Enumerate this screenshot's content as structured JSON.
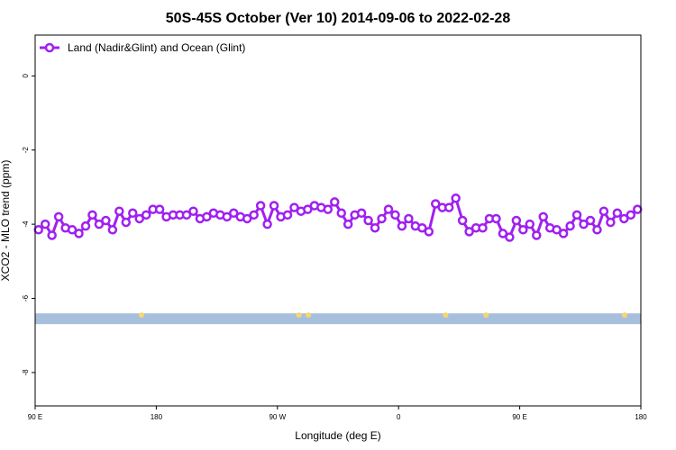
{
  "chart_data": {
    "type": "line",
    "title": "50S-45S October (Ver 10)   2014-09-06 to 2022-02-28",
    "xlabel": "Longitude (deg E)",
    "ylabel": "XCO2 - MLO trend (ppm)",
    "x_ticks": [
      {
        "value": 90,
        "label": "90 E"
      },
      {
        "value": 180,
        "label": "180"
      },
      {
        "value": 270,
        "label": "90 W"
      },
      {
        "value": 360,
        "label": "0"
      },
      {
        "value": 450,
        "label": "90 E"
      },
      {
        "value": 540,
        "label": "180"
      }
    ],
    "y_ticks": [
      0,
      -2,
      -4,
      -6,
      -8
    ],
    "xlim": [
      90,
      540
    ],
    "ylim": [
      -8.9,
      1.1
    ],
    "grid": false,
    "legend_position": "top-left",
    "series": [
      {
        "name": "Land (Nadir&Glint) and Ocean (Glint)",
        "color": "#a020f0",
        "marker": "open-circle",
        "x": [
          92.5,
          97.5,
          102.5,
          107.5,
          112.5,
          117.5,
          122.5,
          127.5,
          132.5,
          137.5,
          142.5,
          147.5,
          152.5,
          157.5,
          162.5,
          167.5,
          172.5,
          177.5,
          182.5,
          187.5,
          192.5,
          197.5,
          202.5,
          207.5,
          212.5,
          217.5,
          222.5,
          227.5,
          232.5,
          237.5,
          242.5,
          247.5,
          252.5,
          257.5,
          262.5,
          267.5,
          272.5,
          277.5,
          282.5,
          287.5,
          292.5,
          297.5,
          302.5,
          307.5,
          312.5,
          317.5,
          322.5,
          327.5,
          332.5,
          337.5,
          342.5,
          347.5,
          352.5,
          357.5,
          362.5,
          367.5,
          372.5,
          377.5,
          382.5,
          387.5,
          392.5,
          397.5,
          402.5,
          407.5,
          412.5,
          417.5,
          422.5,
          427.5,
          432.5,
          437.5,
          442.5,
          447.5,
          452.5,
          457.5,
          462.5,
          467.5,
          472.5,
          477.5,
          482.5,
          487.5,
          492.5,
          497.5,
          502.5,
          507.5,
          512.5,
          517.5,
          522.5,
          527.5,
          532.5,
          537.5
        ],
        "y": [
          -4.15,
          -4.0,
          -4.3,
          -3.8,
          -4.1,
          -4.15,
          -4.25,
          -4.05,
          -3.75,
          -4.0,
          -3.9,
          -4.15,
          -3.65,
          -3.95,
          -3.7,
          -3.85,
          -3.75,
          -3.6,
          -3.6,
          -3.8,
          -3.75,
          -3.75,
          -3.75,
          -3.65,
          -3.85,
          -3.8,
          -3.7,
          -3.75,
          -3.8,
          -3.7,
          -3.8,
          -3.85,
          -3.75,
          -3.5,
          -4.0,
          -3.5,
          -3.8,
          -3.75,
          -3.55,
          -3.65,
          -3.6,
          -3.5,
          -3.55,
          -3.6,
          -3.4,
          -3.7,
          -4.0,
          -3.75,
          -3.7,
          -3.9,
          -4.1,
          -3.85,
          -3.6,
          -3.75,
          -4.05,
          -3.85,
          -4.05,
          -4.1,
          -4.2,
          -3.45,
          -3.55,
          -3.55,
          -3.3,
          -3.9,
          -4.2,
          -4.1,
          -4.1,
          -3.85,
          -3.85,
          -4.25,
          -4.35,
          -3.9,
          -4.15,
          -4.0,
          -4.3,
          -3.8,
          -4.1,
          -4.15,
          -4.25,
          -4.05,
          -3.75,
          -4.0,
          -3.9,
          -4.15,
          -3.65,
          -3.95,
          -3.7,
          -3.85,
          -3.75,
          -3.6
        ]
      }
    ],
    "land_bar": {
      "y": -6.55,
      "color": "#a7bfdc",
      "land_color": "#f5d76e",
      "land_x": [
        169,
        286,
        293,
        395,
        425,
        528
      ]
    }
  }
}
